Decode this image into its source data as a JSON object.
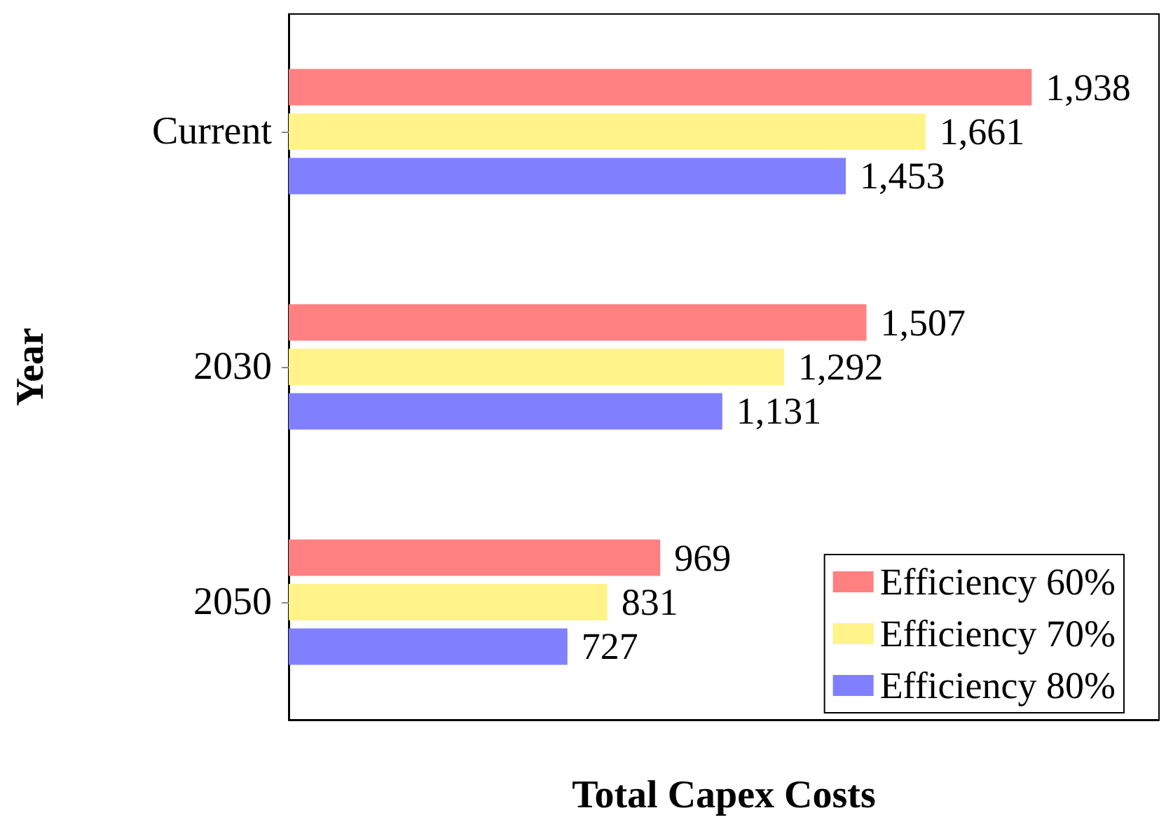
{
  "chart_data": {
    "type": "bar",
    "orientation": "horizontal",
    "xlabel": "Total Capex Costs",
    "ylabel": "Year",
    "categories": [
      "Current",
      "2030",
      "2050"
    ],
    "series": [
      {
        "name": "Efficiency 60%",
        "color": "#ff8080",
        "values": [
          1938,
          1507,
          969
        ],
        "value_labels": [
          "1,938",
          "1,507",
          "969"
        ]
      },
      {
        "name": "Efficiency 70%",
        "color": "#fff38a",
        "values": [
          1661,
          1292,
          831
        ],
        "value_labels": [
          "1,661",
          "1,292",
          "831"
        ]
      },
      {
        "name": "Efficiency 80%",
        "color": "#8080ff",
        "values": [
          1453,
          1131,
          727
        ],
        "value_labels": [
          "1,453",
          "1,131",
          "727"
        ]
      }
    ],
    "xlim": [
      0,
      2270
    ],
    "tick_labels": "y",
    "legend": "bottom right",
    "grid": false
  }
}
